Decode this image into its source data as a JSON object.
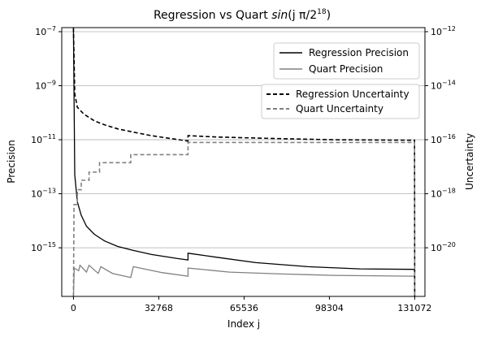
{
  "chart_data": {
    "type": "line",
    "title_main": "Regression vs Quart ",
    "title_func": "sin",
    "title_args": "(j π/2",
    "title_exp": "18",
    "title_close": ")",
    "xlabel": "Index j",
    "ylabel_left": "Precision",
    "ylabel_right": "Uncertainty",
    "xlim": [
      -4500,
      135000
    ],
    "ylim_left_log10": [
      -16.8,
      -6.85
    ],
    "ylim_right_log10": [
      -21.8,
      -11.85
    ],
    "x_ticks": [
      {
        "value": 0,
        "label": "0"
      },
      {
        "value": 32768,
        "label": "32768"
      },
      {
        "value": 65536,
        "label": "65536"
      },
      {
        "value": 98304,
        "label": "98304"
      },
      {
        "value": 131072,
        "label": "131072"
      }
    ],
    "y_left_ticks": [
      {
        "exp": -15,
        "base": "10",
        "label": "−15"
      },
      {
        "exp": -13,
        "base": "10",
        "label": "−13"
      },
      {
        "exp": -11,
        "base": "10",
        "label": "−11"
      },
      {
        "exp": -9,
        "base": "10",
        "label": "−9"
      },
      {
        "exp": -7,
        "base": "10",
        "label": "−7"
      }
    ],
    "y_right_ticks": [
      {
        "exp": -20,
        "base": "10",
        "label": "−20"
      },
      {
        "exp": -18,
        "base": "10",
        "label": "−18"
      },
      {
        "exp": -16,
        "base": "10",
        "label": "−16"
      },
      {
        "exp": -14,
        "base": "10",
        "label": "−14"
      },
      {
        "exp": -12,
        "base": "10",
        "label": "−12"
      }
    ],
    "grid": "horizontal",
    "legend_left_axis": {
      "placement": "upper-right",
      "entries": [
        {
          "label": "Regression Precision",
          "color": "#000000",
          "style": "solid"
        },
        {
          "label": "Quart Precision",
          "color": "#808080",
          "style": "solid"
        }
      ]
    },
    "legend_right_axis": {
      "placement": "upper-right",
      "entries": [
        {
          "label": "Regression Uncertainty",
          "color": "#000000",
          "style": "dashed"
        },
        {
          "label": "Quart Uncertainty",
          "color": "#808080",
          "style": "dashed"
        }
      ]
    },
    "series": [
      {
        "name": "Regression Precision",
        "axis": "left",
        "color": "#000000",
        "style": "solid",
        "log10_points": [
          [
            0,
            -6.9
          ],
          [
            500,
            -12.3
          ],
          [
            1500,
            -13.3
          ],
          [
            3000,
            -13.8
          ],
          [
            5000,
            -14.2
          ],
          [
            8000,
            -14.5
          ],
          [
            12000,
            -14.75
          ],
          [
            17000,
            -14.95
          ],
          [
            23000,
            -15.1
          ],
          [
            30000,
            -15.25
          ],
          [
            40000,
            -15.4
          ],
          [
            44000,
            -15.45
          ],
          [
            44001,
            -15.2
          ],
          [
            55000,
            -15.35
          ],
          [
            70000,
            -15.55
          ],
          [
            90000,
            -15.7
          ],
          [
            110000,
            -15.78
          ],
          [
            131000,
            -15.8
          ],
          [
            131072,
            -16.8
          ]
        ]
      },
      {
        "name": "Quart Precision",
        "axis": "left",
        "color": "#808080",
        "style": "solid",
        "log10_points": [
          [
            0,
            -16.8
          ],
          [
            300,
            -15.75
          ],
          [
            2000,
            -15.85
          ],
          [
            2500,
            -15.65
          ],
          [
            5000,
            -15.9
          ],
          [
            6000,
            -15.65
          ],
          [
            9500,
            -15.95
          ],
          [
            10500,
            -15.7
          ],
          [
            15000,
            -15.95
          ],
          [
            22000,
            -16.1
          ],
          [
            23000,
            -15.7
          ],
          [
            34000,
            -15.92
          ],
          [
            44000,
            -16.05
          ],
          [
            44001,
            -15.75
          ],
          [
            60000,
            -15.9
          ],
          [
            80000,
            -15.97
          ],
          [
            100000,
            -16.02
          ],
          [
            131000,
            -16.05
          ],
          [
            131072,
            -16.8
          ]
        ]
      },
      {
        "name": "Regression Uncertainty",
        "axis": "right",
        "color": "#000000",
        "style": "dashed",
        "log10_points": [
          [
            0,
            -11.85
          ],
          [
            500,
            -14.3
          ],
          [
            1500,
            -14.8
          ],
          [
            4000,
            -15.05
          ],
          [
            8000,
            -15.3
          ],
          [
            12000,
            -15.45
          ],
          [
            17000,
            -15.6
          ],
          [
            23000,
            -15.72
          ],
          [
            30000,
            -15.85
          ],
          [
            37000,
            -15.95
          ],
          [
            44000,
            -16.05
          ],
          [
            44001,
            -15.85
          ],
          [
            55000,
            -15.9
          ],
          [
            75000,
            -15.95
          ],
          [
            100000,
            -16.0
          ],
          [
            131000,
            -16.02
          ],
          [
            131072,
            -21.8
          ]
        ]
      },
      {
        "name": "Quart Uncertainty",
        "axis": "right",
        "color": "#808080",
        "style": "dashed",
        "log10_points": [
          [
            0,
            -21.8
          ],
          [
            200,
            -18.4
          ],
          [
            1500,
            -18.4
          ],
          [
            1501,
            -17.85
          ],
          [
            3000,
            -17.85
          ],
          [
            3001,
            -17.5
          ],
          [
            6000,
            -17.5
          ],
          [
            6001,
            -17.2
          ],
          [
            10000,
            -17.2
          ],
          [
            10001,
            -16.85
          ],
          [
            22000,
            -16.85
          ],
          [
            22001,
            -16.55
          ],
          [
            44000,
            -16.55
          ],
          [
            44001,
            -16.1
          ],
          [
            131000,
            -16.1
          ],
          [
            131072,
            -21.8
          ]
        ]
      }
    ]
  }
}
